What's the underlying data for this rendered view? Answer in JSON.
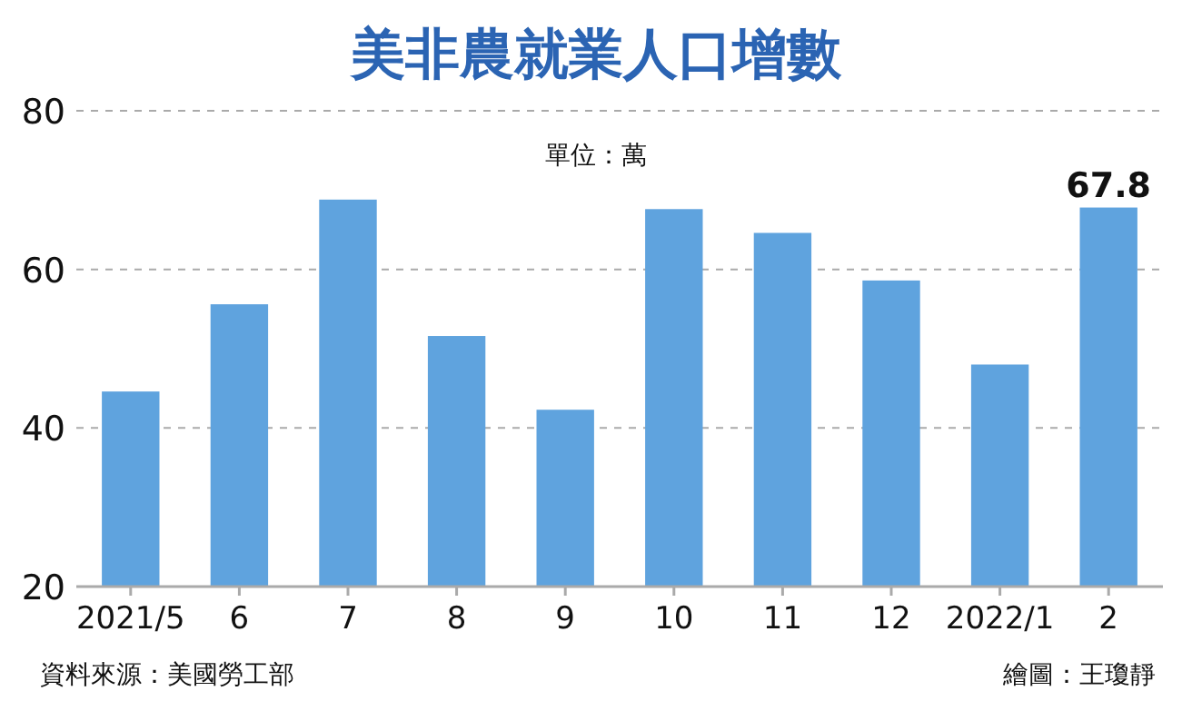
{
  "chart_data": {
    "type": "bar",
    "title": "美非農就業人口增數",
    "subtitle": "單位：萬",
    "categories": [
      "2021/5",
      "6",
      "7",
      "8",
      "9",
      "10",
      "11",
      "12",
      "2022/1",
      "2"
    ],
    "values": [
      44.6,
      55.6,
      68.8,
      51.6,
      42.3,
      67.6,
      64.6,
      58.6,
      48.0,
      67.8
    ],
    "value_labels": [
      null,
      null,
      null,
      null,
      null,
      null,
      null,
      null,
      null,
      "67.8"
    ],
    "color": "#5fa3de",
    "ylim": [
      20,
      80
    ],
    "yticks": [
      20,
      40,
      60,
      80
    ],
    "grid": "y",
    "annotations": [
      "資料來源：美國勞工部",
      "繪圖：王瓊靜"
    ]
  }
}
